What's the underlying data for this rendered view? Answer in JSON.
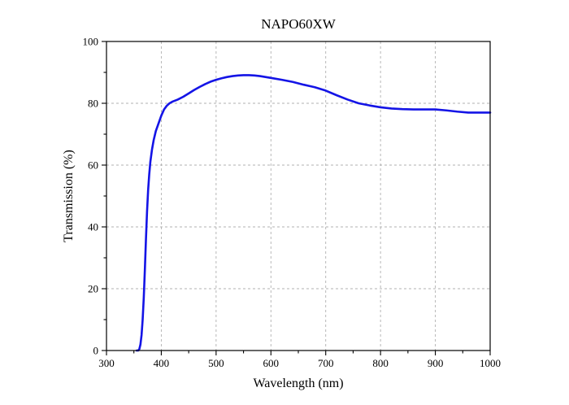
{
  "chart_data": {
    "type": "line",
    "title": "NAPO60XW",
    "xlabel": "Wavelength (nm)",
    "ylabel": "Transmission (%)",
    "xlim": [
      300,
      1000
    ],
    "ylim": [
      0,
      100
    ],
    "xticks": [
      300,
      400,
      500,
      600,
      700,
      800,
      900,
      1000
    ],
    "yticks": [
      0,
      20,
      40,
      60,
      80,
      100
    ],
    "xtick_labels": [
      "300",
      "400",
      "500",
      "600",
      "700",
      "800",
      "900",
      "1000"
    ],
    "ytick_labels": [
      "0",
      "20",
      "40",
      "60",
      "80",
      "100"
    ],
    "minor_ticks": true,
    "grid": true,
    "series": [
      {
        "color": "#1414e6",
        "x": [
          355,
          358,
          360,
          362,
          364,
          366,
          368,
          370,
          372,
          374,
          376,
          378,
          380,
          383,
          386,
          390,
          395,
          400,
          405,
          410,
          415,
          420,
          430,
          440,
          450,
          460,
          470,
          480,
          490,
          500,
          510,
          520,
          530,
          540,
          550,
          560,
          570,
          580,
          590,
          600,
          620,
          640,
          660,
          680,
          700,
          720,
          740,
          760,
          780,
          800,
          820,
          840,
          860,
          880,
          900,
          920,
          940,
          960,
          980,
          1000
        ],
        "y": [
          0,
          0,
          0.5,
          2,
          5,
          10,
          17,
          26,
          36,
          45,
          52,
          57,
          61,
          65,
          68,
          71,
          73.5,
          76,
          78,
          79.2,
          80,
          80.5,
          81.2,
          82.1,
          83.2,
          84.3,
          85.3,
          86.2,
          87,
          87.6,
          88.1,
          88.5,
          88.8,
          89,
          89.1,
          89.1,
          89,
          88.8,
          88.5,
          88.2,
          87.6,
          86.9,
          86,
          85.2,
          84.1,
          82.6,
          81.2,
          80,
          79.3,
          78.7,
          78.3,
          78.1,
          78,
          78,
          78,
          77.7,
          77.3,
          77,
          77,
          77
        ]
      }
    ]
  }
}
